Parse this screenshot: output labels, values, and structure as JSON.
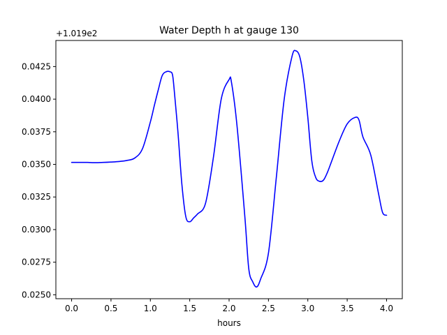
{
  "chart_data": {
    "type": "line",
    "title": "Water Depth h at gauge 130",
    "xlabel": "hours",
    "ylabel": "",
    "offset_text": "+1.019e2",
    "xlim": [
      -0.2,
      4.2
    ],
    "ylim": [
      0.0247,
      0.0445
    ],
    "xticks": [
      0.0,
      0.5,
      1.0,
      1.5,
      2.0,
      2.5,
      3.0,
      3.5,
      4.0
    ],
    "xtick_labels": [
      "0.0",
      "0.5",
      "1.0",
      "1.5",
      "2.0",
      "2.5",
      "3.0",
      "3.5",
      "4.0"
    ],
    "yticks": [
      0.025,
      0.0275,
      0.03,
      0.0325,
      0.035,
      0.0375,
      0.04,
      0.0425
    ],
    "ytick_labels": [
      "0.0250",
      "0.0275",
      "0.0300",
      "0.0325",
      "0.0350",
      "0.0375",
      "0.0400",
      "0.0425"
    ],
    "grid": false,
    "series": [
      {
        "color": "#0000ff",
        "x": [
          0.0,
          0.1,
          0.2,
          0.3,
          0.4,
          0.5,
          0.6,
          0.7,
          0.8,
          0.9,
          1.0,
          1.05,
          1.1,
          1.15,
          1.2,
          1.25,
          1.28,
          1.3,
          1.35,
          1.4,
          1.45,
          1.5,
          1.55,
          1.6,
          1.7,
          1.8,
          1.9,
          2.0,
          2.03,
          2.1,
          2.2,
          2.25,
          2.3,
          2.35,
          2.4,
          2.5,
          2.6,
          2.7,
          2.8,
          2.85,
          2.9,
          2.95,
          3.0,
          3.05,
          3.1,
          3.15,
          3.2,
          3.25,
          3.3,
          3.4,
          3.5,
          3.6,
          3.65,
          3.7,
          3.8,
          3.9,
          3.95,
          4.0
        ],
        "y": [
          0.03515,
          0.03515,
          0.03515,
          0.03513,
          0.03515,
          0.03518,
          0.03522,
          0.0353,
          0.03548,
          0.0362,
          0.03825,
          0.0395,
          0.0407,
          0.0418,
          0.0421,
          0.0421,
          0.0419,
          0.0409,
          0.0375,
          0.0335,
          0.031,
          0.0306,
          0.0309,
          0.0312,
          0.032,
          0.0355,
          0.04,
          0.0415,
          0.0413,
          0.038,
          0.031,
          0.027,
          0.026,
          0.0256,
          0.0262,
          0.0282,
          0.034,
          0.04,
          0.0433,
          0.0437,
          0.0432,
          0.0414,
          0.0386,
          0.0353,
          0.034,
          0.0337,
          0.0338,
          0.0344,
          0.0352,
          0.0368,
          0.0381,
          0.0386,
          0.0384,
          0.0371,
          0.0357,
          0.0327,
          0.0313,
          0.0311
        ]
      }
    ]
  }
}
